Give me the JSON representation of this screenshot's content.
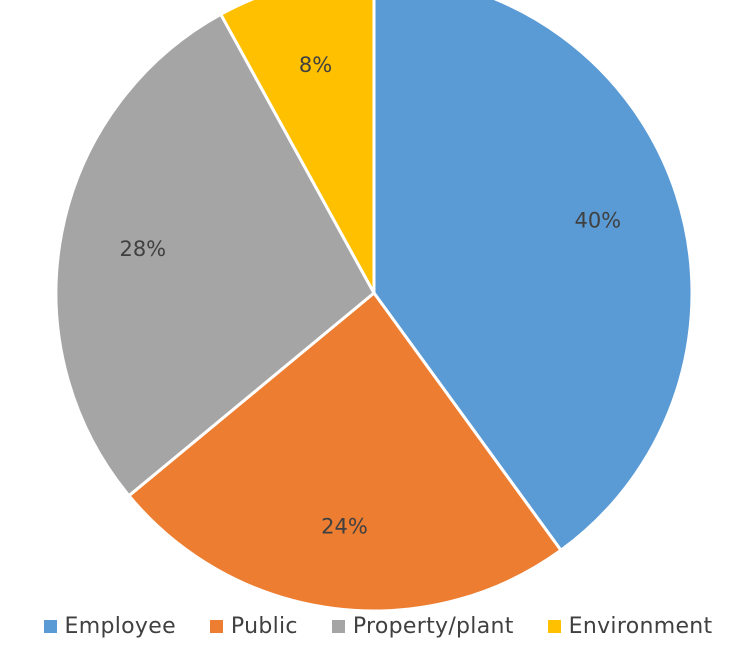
{
  "chart_data": {
    "type": "pie",
    "title": "",
    "categories": [
      "Employee",
      "Public",
      "Property/plant",
      "Environment"
    ],
    "values": [
      40,
      24,
      28,
      8
    ],
    "data_labels": [
      "40%",
      "24%",
      "28%",
      "8%"
    ],
    "colors": [
      "#5B9BD5",
      "#ED7D31",
      "#A5A5A5",
      "#FFC000"
    ],
    "start_angle_deg": 0,
    "direction": "clockwise",
    "legend_position": "bottom"
  }
}
